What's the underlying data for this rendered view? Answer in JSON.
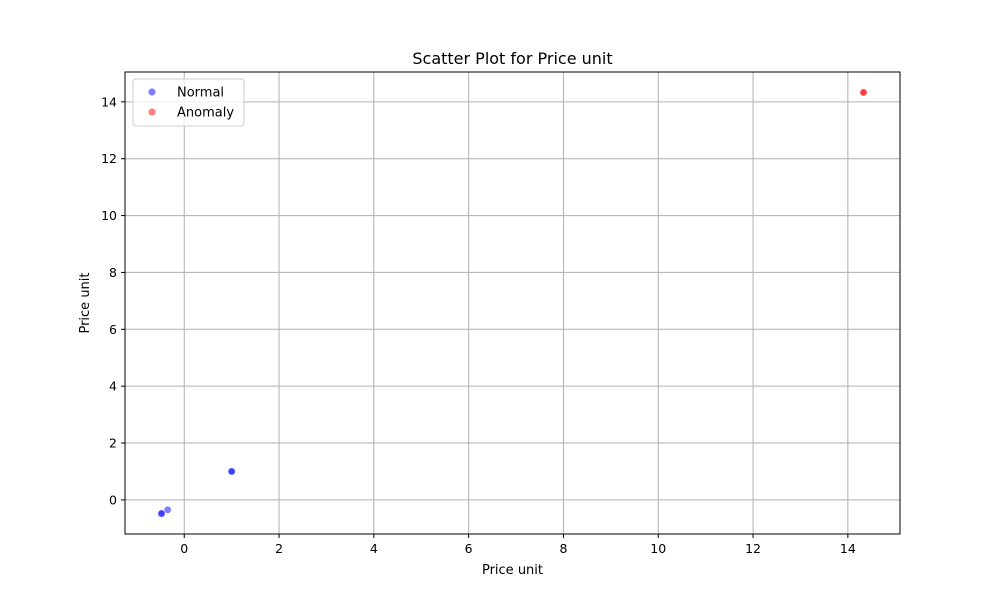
{
  "chart_data": {
    "type": "scatter",
    "title": "Scatter Plot for Price unit",
    "xlabel": "Price unit",
    "ylabel": "Price unit",
    "xlim": [
      -1.25,
      15.1
    ],
    "ylim": [
      -1.2,
      15.05
    ],
    "xticks": [
      0,
      2,
      4,
      6,
      8,
      10,
      12,
      14
    ],
    "yticks": [
      0,
      2,
      4,
      6,
      8,
      10,
      12,
      14
    ],
    "grid": true,
    "legend_position": "upper-left",
    "series": [
      {
        "name": "Normal",
        "color": "#0000ff",
        "alpha": 0.5,
        "points": [
          {
            "x": -0.48,
            "y": -0.48
          },
          {
            "x": -0.48,
            "y": -0.48
          },
          {
            "x": -0.35,
            "y": -0.35
          },
          {
            "x": 1.0,
            "y": 1.0
          },
          {
            "x": 1.0,
            "y": 1.0
          }
        ]
      },
      {
        "name": "Anomaly",
        "color": "#ff0000",
        "alpha": 0.5,
        "points": [
          {
            "x": 14.33,
            "y": 14.33
          },
          {
            "x": 14.33,
            "y": 14.33
          }
        ]
      }
    ]
  }
}
